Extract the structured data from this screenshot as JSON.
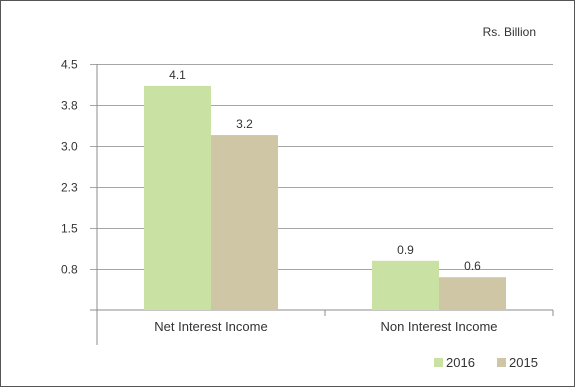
{
  "chart_data": {
    "type": "bar",
    "unit_label": "Rs. Billion",
    "categories": [
      "Net Interest Income",
      "Non Interest Income"
    ],
    "series": [
      {
        "name": "2016",
        "values": [
          4.1,
          0.9
        ],
        "color": "#c9e1a3"
      },
      {
        "name": "2015",
        "values": [
          3.2,
          0.6
        ],
        "color": "#cfc6a6"
      }
    ],
    "y_ticks": [
      "0.8",
      "1.5",
      "2.3",
      "3.0",
      "3.8",
      "4.5"
    ],
    "y_tick_values": [
      0.75,
      1.5,
      2.25,
      3.0,
      3.75,
      4.5
    ],
    "ylim": [
      0,
      4.5
    ],
    "grid": true,
    "legend_position": "bottom-right",
    "gridline_color": "#a6a6a6"
  }
}
